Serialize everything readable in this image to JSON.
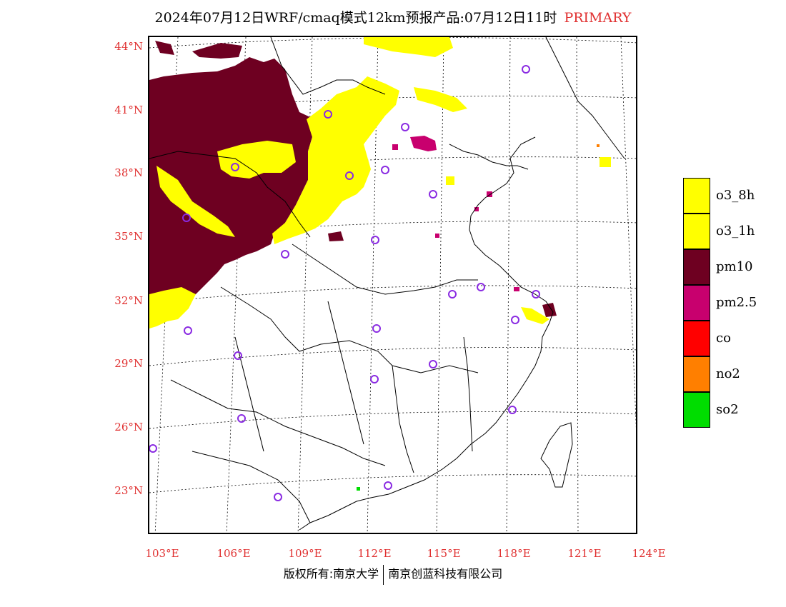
{
  "title": {
    "main": "2024年07月12日WRF/cmaq模式12km预报产品:07月12日11时",
    "tag": "PRIMARY"
  },
  "colors": {
    "tag": "#e03030",
    "axis_labels": "#e03030",
    "o3_8h": "#ffff00",
    "o3_1h": "#ffff00",
    "pm10": "#6e0021",
    "pm2_5": "#c8006e",
    "co": "#ff0000",
    "no2": "#ff7f00",
    "so2": "#00dd00",
    "station_marker": "#8a2be2"
  },
  "axes": {
    "lat_labels": [
      "44°N",
      "41°N",
      "38°N",
      "35°N",
      "32°N",
      "29°N",
      "26°N",
      "23°N"
    ],
    "lon_labels": [
      "103°E",
      "106°E",
      "109°E",
      "112°E",
      "115°E",
      "118°E",
      "121°E",
      "124°E"
    ]
  },
  "legend": {
    "items": [
      {
        "label": "o3_8h",
        "color": "#ffff00"
      },
      {
        "label": "o3_1h",
        "color": "#ffff00"
      },
      {
        "label": "pm10",
        "color": "#6e0021"
      },
      {
        "label": "pm2.5",
        "color": "#c8006e"
      },
      {
        "label": "co",
        "color": "#ff0000"
      },
      {
        "label": "no2",
        "color": "#ff7f00"
      },
      {
        "label": "so2",
        "color": "#00dd00"
      }
    ]
  },
  "footer": {
    "left": "版权所有:南京大学",
    "right": "南京创蓝科技有限公司"
  }
}
